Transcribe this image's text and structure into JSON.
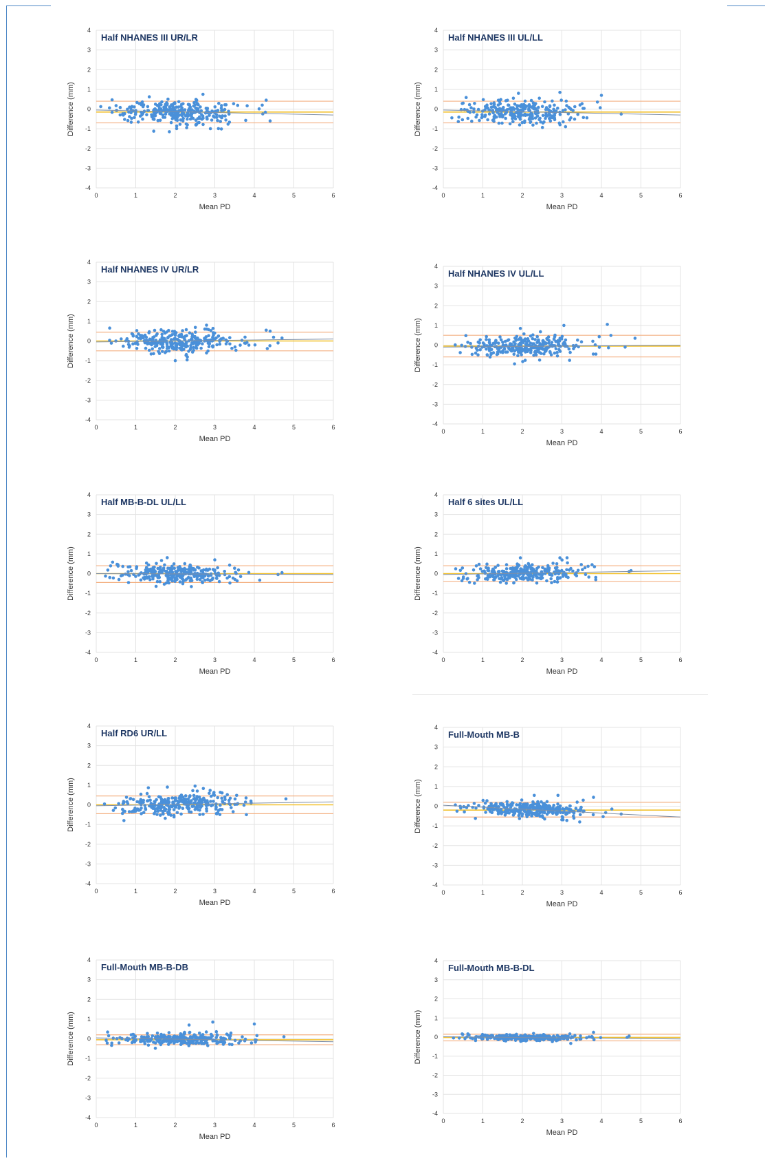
{
  "colors": {
    "point": "#4a90d9",
    "mean_line": "#f2c12e",
    "limit_line": "#f4b183",
    "trend_line": "#7f8fa6",
    "grid": "#e3e3e3",
    "frame": "#4a86c5"
  },
  "chart_data": [
    {
      "type": "scatter",
      "title": "Half NHANES III UR/LR",
      "xlabel": "Mean PD",
      "ylabel": "Difference (mm)",
      "xlim": [
        0,
        6
      ],
      "ylim": [
        -4,
        4
      ],
      "xticks": [
        "0",
        "1",
        "2",
        "3",
        "4",
        "5",
        "6"
      ],
      "yticks": [
        "4",
        "3",
        "2",
        "1",
        "0",
        "-1",
        "-2",
        "-3",
        "-4"
      ],
      "grid": true,
      "mean_difference": -0.15,
      "upper_limit": 0.4,
      "lower_limit": -0.7,
      "trend": [
        [
          0,
          -0.05
        ],
        [
          6,
          -0.3
        ]
      ],
      "cloud": {
        "x_range": [
          0.1,
          4.5
        ],
        "x_center": 2.0,
        "spread": 0.3,
        "n": 300
      },
      "outliers": [
        [
          2.7,
          0.75
        ],
        [
          4.3,
          0.45
        ],
        [
          4.4,
          -0.6
        ],
        [
          1.85,
          -1.15
        ],
        [
          4.2,
          0.2
        ]
      ]
    },
    {
      "type": "scatter",
      "title": "Half NHANES III UL/LL",
      "xlabel": "Mean PD",
      "ylabel": "Difference (mm)",
      "xlim": [
        0,
        6
      ],
      "ylim": [
        -4,
        4
      ],
      "xticks": [
        "0",
        "1",
        "2",
        "3",
        "4",
        "5",
        "6"
      ],
      "yticks": [
        "4",
        "3",
        "2",
        "1",
        "0",
        "-1",
        "-2",
        "-3",
        "-4"
      ],
      "grid": true,
      "mean_difference": -0.15,
      "upper_limit": 0.4,
      "lower_limit": -0.7,
      "trend": [
        [
          0,
          -0.05
        ],
        [
          6,
          -0.3
        ]
      ],
      "cloud": {
        "x_range": [
          0.2,
          4.1
        ],
        "x_center": 2.0,
        "spread": 0.3,
        "n": 280
      },
      "outliers": [
        [
          2.95,
          0.85
        ],
        [
          4.0,
          0.7
        ],
        [
          1.9,
          0.8
        ],
        [
          4.5,
          -0.25
        ],
        [
          0.5,
          0.3
        ]
      ]
    },
    {
      "type": "scatter",
      "title": "Half NHANES IV UR/LR",
      "xlabel": "Mean PD",
      "ylabel": "Difference (mm)",
      "xlim": [
        0,
        6
      ],
      "ylim": [
        -4,
        4
      ],
      "xticks": [
        "0",
        "1",
        "2",
        "3",
        "4",
        "5",
        "6"
      ],
      "yticks": [
        "4",
        "3",
        "2",
        "1",
        "0",
        "-1",
        "-2",
        "-3",
        "-4"
      ],
      "grid": true,
      "mean_difference": 0.0,
      "upper_limit": 0.45,
      "lower_limit": -0.5,
      "trend": [
        [
          0,
          -0.05
        ],
        [
          6,
          0.1
        ]
      ],
      "cloud": {
        "x_range": [
          0.1,
          4.7
        ],
        "x_center": 2.1,
        "spread": 0.3,
        "n": 300
      },
      "outliers": [
        [
          4.3,
          0.55
        ],
        [
          4.4,
          0.5
        ],
        [
          2.0,
          -1.0
        ],
        [
          4.7,
          0.15
        ],
        [
          4.6,
          -0.1
        ]
      ]
    },
    {
      "type": "scatter",
      "title": "Half NHANES IV UL/LL",
      "xlabel": "Mean PD",
      "ylabel": "Difference (mm)",
      "xlim": [
        0,
        6
      ],
      "ylim": [
        -4,
        4
      ],
      "xticks": [
        "0",
        "1",
        "2",
        "3",
        "4",
        "5",
        "6"
      ],
      "yticks": [
        "4",
        "3",
        "2",
        "1",
        "0",
        "-1",
        "-2",
        "-3",
        "-4"
      ],
      "grid": true,
      "mean_difference": -0.05,
      "upper_limit": 0.5,
      "lower_limit": -0.6,
      "trend": [
        [
          0,
          -0.1
        ],
        [
          6,
          0.0
        ]
      ],
      "cloud": {
        "x_range": [
          0.2,
          4.3
        ],
        "x_center": 2.1,
        "spread": 0.3,
        "n": 290
      },
      "outliers": [
        [
          4.15,
          1.05
        ],
        [
          4.85,
          0.35
        ],
        [
          3.05,
          1.0
        ],
        [
          1.95,
          0.85
        ],
        [
          4.6,
          -0.1
        ]
      ]
    },
    {
      "type": "scatter",
      "title": "Half MB-B-DL UL/LL",
      "xlabel": "Mean PD",
      "ylabel": "Difference (mm)",
      "xlim": [
        0,
        6
      ],
      "ylim": [
        -4,
        4
      ],
      "xticks": [
        "0",
        "1",
        "2",
        "3",
        "4",
        "5",
        "6"
      ],
      "yticks": [
        "4",
        "3",
        "2",
        "1",
        "0",
        "-1",
        "-2",
        "-3",
        "-4"
      ],
      "grid": true,
      "mean_difference": 0.0,
      "upper_limit": 0.4,
      "lower_limit": -0.45,
      "trend": [
        [
          0,
          0.0
        ],
        [
          6,
          -0.05
        ]
      ],
      "cloud": {
        "x_range": [
          0.2,
          4.2
        ],
        "x_center": 2.1,
        "spread": 0.25,
        "n": 280
      },
      "outliers": [
        [
          0.55,
          0.45
        ],
        [
          4.7,
          0.05
        ],
        [
          4.6,
          -0.05
        ],
        [
          3.0,
          0.7
        ]
      ]
    },
    {
      "type": "scatter",
      "title": "Half 6 sites UL/LL",
      "xlabel": "Mean PD",
      "ylabel": "Difference (mm)",
      "xlim": [
        0,
        6
      ],
      "ylim": [
        -4,
        4
      ],
      "xticks": [
        "0",
        "1",
        "2",
        "3",
        "4",
        "5",
        "6"
      ],
      "yticks": [
        "4",
        "3",
        "2",
        "1",
        "0",
        "-1",
        "-2",
        "-3",
        "-4"
      ],
      "grid": true,
      "mean_difference": 0.0,
      "upper_limit": 0.4,
      "lower_limit": -0.4,
      "trend": [
        [
          0,
          -0.05
        ],
        [
          6,
          0.15
        ]
      ],
      "cloud": {
        "x_range": [
          0.2,
          4.1
        ],
        "x_center": 2.1,
        "spread": 0.25,
        "n": 290
      },
      "outliers": [
        [
          4.75,
          0.15
        ],
        [
          4.7,
          0.1
        ],
        [
          2.95,
          0.8
        ],
        [
          1.95,
          0.8
        ]
      ]
    },
    {
      "type": "scatter",
      "title": "Half RD6 UR/LL",
      "xlabel": "Mean PD",
      "ylabel": "Difference (mm)",
      "xlim": [
        0,
        6
      ],
      "ylim": [
        -4,
        4
      ],
      "xticks": [
        "0",
        "1",
        "2",
        "3",
        "4",
        "5",
        "6"
      ],
      "yticks": [
        "4",
        "3",
        "2",
        "1",
        "0",
        "-1",
        "-2",
        "-3",
        "-4"
      ],
      "grid": true,
      "mean_difference": 0.0,
      "upper_limit": 0.45,
      "lower_limit": -0.45,
      "trend": [
        [
          0,
          -0.05
        ],
        [
          6,
          0.15
        ]
      ],
      "cloud": {
        "x_range": [
          0.1,
          4.1
        ],
        "x_center": 2.1,
        "spread": 0.3,
        "n": 290
      },
      "outliers": [
        [
          2.5,
          0.95
        ],
        [
          1.8,
          0.9
        ],
        [
          4.8,
          0.3
        ],
        [
          0.7,
          -0.8
        ],
        [
          3.8,
          -0.5
        ]
      ]
    },
    {
      "type": "scatter",
      "title": "Full-Mouth MB-B",
      "xlabel": "Mean PD",
      "ylabel": "Difference (mm)",
      "xlim": [
        0,
        6
      ],
      "ylim": [
        -4,
        4
      ],
      "xticks": [
        "0",
        "1",
        "2",
        "3",
        "4",
        "5",
        "6"
      ],
      "yticks": [
        "4",
        "3",
        "2",
        "1",
        "0",
        "-1",
        "-2",
        "-3",
        "-4"
      ],
      "grid": true,
      "mean_difference": -0.2,
      "upper_limit": 0.2,
      "lower_limit": -0.55,
      "trend": [
        [
          0,
          0.05
        ],
        [
          6,
          -0.55
        ]
      ],
      "cloud": {
        "x_range": [
          0.3,
          4.4
        ],
        "x_center": 2.2,
        "spread": 0.2,
        "n": 300
      },
      "outliers": [
        [
          3.8,
          0.45
        ],
        [
          2.9,
          0.55
        ],
        [
          2.3,
          0.55
        ],
        [
          4.5,
          -0.4
        ],
        [
          3.45,
          -0.8
        ]
      ]
    },
    {
      "type": "scatter",
      "title": "Full-Mouth MB-B-DB",
      "xlabel": "Mean PD",
      "ylabel": "Difference (mm)",
      "xlim": [
        0,
        6
      ],
      "ylim": [
        -4,
        4
      ],
      "xticks": [
        "0",
        "1",
        "2",
        "3",
        "4",
        "5",
        "6"
      ],
      "yticks": [
        "4",
        "3",
        "2",
        "1",
        "0",
        "-1",
        "-2",
        "-3",
        "-4"
      ],
      "grid": true,
      "mean_difference": -0.05,
      "upper_limit": 0.2,
      "lower_limit": -0.3,
      "trend": [
        [
          0,
          0.05
        ],
        [
          6,
          -0.15
        ]
      ],
      "cloud": {
        "x_range": [
          0.2,
          4.1
        ],
        "x_center": 2.1,
        "spread": 0.15,
        "n": 290
      },
      "outliers": [
        [
          2.95,
          0.85
        ],
        [
          4.0,
          0.75
        ],
        [
          2.35,
          0.7
        ],
        [
          4.75,
          0.1
        ]
      ]
    },
    {
      "type": "scatter",
      "title": "Full-Mouth MB-B-DL",
      "xlabel": "Mean PD",
      "ylabel": "Difference (mm)",
      "xlim": [
        0,
        6
      ],
      "ylim": [
        -4,
        4
      ],
      "xticks": [
        "0",
        "1",
        "2",
        "3",
        "4",
        "5",
        "6"
      ],
      "yticks": [
        "4",
        "3",
        "2",
        "1",
        "0",
        "-1",
        "-2",
        "-3",
        "-4"
      ],
      "grid": true,
      "mean_difference": -0.02,
      "upper_limit": 0.15,
      "lower_limit": -0.2,
      "trend": [
        [
          0,
          0.02
        ],
        [
          6,
          -0.1
        ]
      ],
      "cloud": {
        "x_range": [
          0.2,
          4.1
        ],
        "x_center": 2.1,
        "spread": 0.08,
        "n": 280
      },
      "outliers": [
        [
          3.8,
          0.25
        ],
        [
          4.7,
          0.05
        ],
        [
          4.65,
          -0.02
        ]
      ]
    }
  ]
}
